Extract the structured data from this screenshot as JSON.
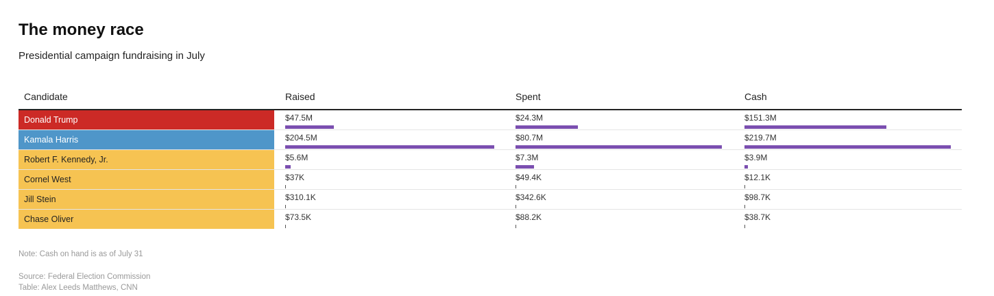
{
  "title": "The money race",
  "subtitle": "Presidential campaign fundraising in July",
  "columns": [
    "Candidate",
    "Raised",
    "Spent",
    "Cash"
  ],
  "note": "Note: Cash on hand is as of July 31",
  "source": "Source: Federal Election Commission",
  "credit": "Table: Alex Leeds Matthews, CNN",
  "colors": {
    "bar": "#7b4fb0",
    "republican": "#cc2a26",
    "democrat": "#4f96c9",
    "independent": "#f6c352"
  },
  "chart_data": {
    "type": "table",
    "columns": [
      "Candidate",
      "Raised",
      "Spent",
      "Cash"
    ],
    "rows": [
      {
        "candidate": "Donald Trump",
        "color": "#cc2a26",
        "text_color": "#ffffff",
        "raised": 47.5,
        "raised_label": "$47.5M",
        "spent": 24.3,
        "spent_label": "$24.3M",
        "cash": 151.3,
        "cash_label": "$151.3M"
      },
      {
        "candidate": "Kamala Harris",
        "color": "#4f96c9",
        "text_color": "#ffffff",
        "raised": 204.5,
        "raised_label": "$204.5M",
        "spent": 80.7,
        "spent_label": "$80.7M",
        "cash": 219.7,
        "cash_label": "$219.7M"
      },
      {
        "candidate": "Robert F. Kennedy, Jr.",
        "color": "#f6c352",
        "text_color": "#222222",
        "raised": 5.6,
        "raised_label": "$5.6M",
        "spent": 7.3,
        "spent_label": "$7.3M",
        "cash": 3.9,
        "cash_label": "$3.9M"
      },
      {
        "candidate": "Cornel West",
        "color": "#f6c352",
        "text_color": "#222222",
        "raised": 0.037,
        "raised_label": "$37K",
        "spent": 0.0494,
        "spent_label": "$49.4K",
        "cash": 0.0121,
        "cash_label": "$12.1K"
      },
      {
        "candidate": "Jill Stein",
        "color": "#f6c352",
        "text_color": "#222222",
        "raised": 0.3101,
        "raised_label": "$310.1K",
        "spent": 0.3426,
        "spent_label": "$342.6K",
        "cash": 0.0987,
        "cash_label": "$98.7K"
      },
      {
        "candidate": "Chase Oliver",
        "color": "#f6c352",
        "text_color": "#222222",
        "raised": 0.0735,
        "raised_label": "$73.5K",
        "spent": 0.0882,
        "spent_label": "$88.2K",
        "cash": 0.0387,
        "cash_label": "$38.7K"
      }
    ]
  }
}
